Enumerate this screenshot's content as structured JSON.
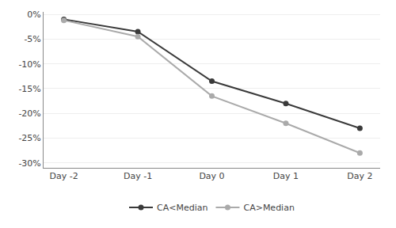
{
  "chart_data": {
    "type": "line",
    "categories": [
      "Day -2",
      "Day -1",
      "Day 0",
      "Day 1",
      "Day 2"
    ],
    "series": [
      {
        "name": "CA<Median",
        "color": "#3a3a3a",
        "marker": "circle",
        "values": [
          -1.0,
          -3.5,
          -13.5,
          -18.0,
          -23.0
        ]
      },
      {
        "name": "CA>Median",
        "color": "#aaaaaa",
        "marker": "circle",
        "values": [
          -1.2,
          -4.5,
          -16.5,
          -22.0,
          -28.0
        ]
      }
    ],
    "ylim": [
      -31,
      0.5
    ],
    "yticks": [
      {
        "value": 0,
        "label": "0%"
      },
      {
        "value": -5,
        "label": "-5%"
      },
      {
        "value": -10,
        "label": "-10%"
      },
      {
        "value": -15,
        "label": "-15%"
      },
      {
        "value": -20,
        "label": "-20%"
      },
      {
        "value": -25,
        "label": "-25%"
      },
      {
        "value": -30,
        "label": "-30%"
      }
    ],
    "grid": true,
    "legend": "bottom"
  }
}
